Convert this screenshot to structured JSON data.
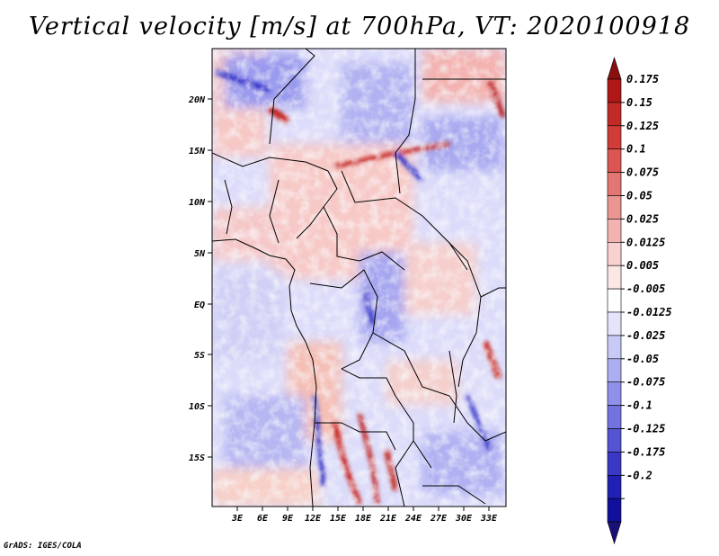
{
  "title": "Vertical velocity [m/s] at 700hPa, VT: 2020100918",
  "variable": "Vertical velocity",
  "units": "m/s",
  "level": "700hPa",
  "valid_time": "2020100918",
  "credit": "GrADS: IGES/COLA",
  "axes": {
    "lat_labels": [
      "20N",
      "15N",
      "10N",
      "5N",
      "EQ",
      "5S",
      "10S",
      "15S"
    ],
    "lon_labels": [
      "3E",
      "6E",
      "9E",
      "12E",
      "15E",
      "18E",
      "21E",
      "24E",
      "27E",
      "30E",
      "33E"
    ]
  },
  "colorbar": {
    "labels": [
      "0.175",
      "0.15",
      "0.125",
      "0.1",
      "0.075",
      "0.05",
      "0.025",
      "0.0125",
      "0.005",
      "-0.005",
      "-0.0125",
      "-0.025",
      "-0.05",
      "-0.075",
      "-0.1",
      "-0.125",
      "-0.175",
      "-0.2"
    ],
    "colors": [
      "#b01818",
      "#c12a26",
      "#d13c38",
      "#db5652",
      "#e37572",
      "#ea9592",
      "#f2b4b1",
      "#f7d2d0",
      "#fbe7e6",
      "#ffffff",
      "#e4e4fb",
      "#c9c9f6",
      "#adadf1",
      "#9090ea",
      "#7272e0",
      "#5555d4",
      "#3939c6",
      "#2020b4",
      "#10109c"
    ],
    "top_arrow_color": "#8c0f0f",
    "bottom_arrow_color": "#1a1078"
  }
}
